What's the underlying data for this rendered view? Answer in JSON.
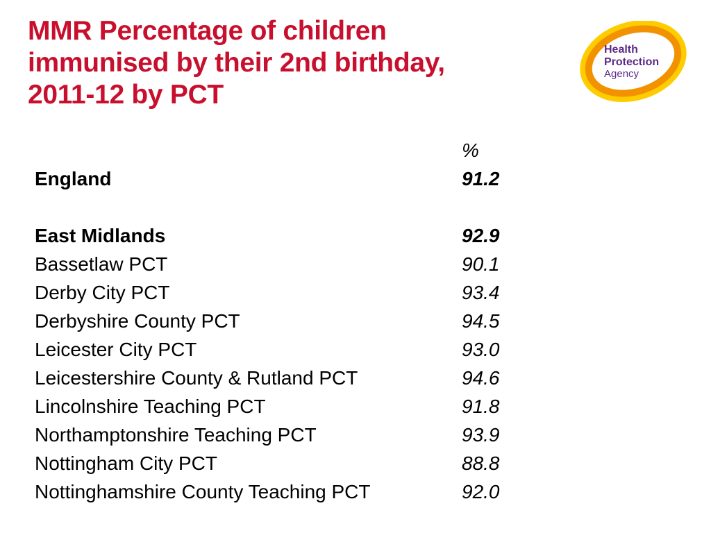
{
  "slide": {
    "title": "MMR Percentage of children\nimmunised by their 2nd birthday,\n2011-12   by PCT",
    "logo": {
      "line1": "Health",
      "line2": "Protection",
      "line3": "Agency",
      "colors": {
        "ring_orange": "#f39200",
        "ring_yellow": "#ffcc00",
        "text_purple": "#5b2a86"
      }
    },
    "colors": {
      "title": "#c8102e",
      "text": "#000000",
      "background": "#ffffff"
    },
    "table": {
      "unit_header": "%",
      "national": {
        "label": "England",
        "value": "91.2"
      },
      "region": {
        "label": "East Midlands",
        "value": "92.9"
      },
      "rows": [
        {
          "label": "Bassetlaw PCT",
          "value": "90.1"
        },
        {
          "label": "Derby City PCT",
          "value": "93.4"
        },
        {
          "label": "Derbyshire County PCT",
          "value": "94.5"
        },
        {
          "label": "Leicester City PCT",
          "value": "93.0"
        },
        {
          "label": "Leicestershire County & Rutland PCT",
          "value": "94.6"
        },
        {
          "label": "Lincolnshire Teaching PCT",
          "value": "91.8"
        },
        {
          "label": "Northamptonshire Teaching PCT",
          "value": "93.9"
        },
        {
          "label": "Nottingham City PCT",
          "value": "88.8"
        },
        {
          "label": "Nottinghamshire County Teaching PCT",
          "value": "92.0"
        }
      ]
    }
  }
}
